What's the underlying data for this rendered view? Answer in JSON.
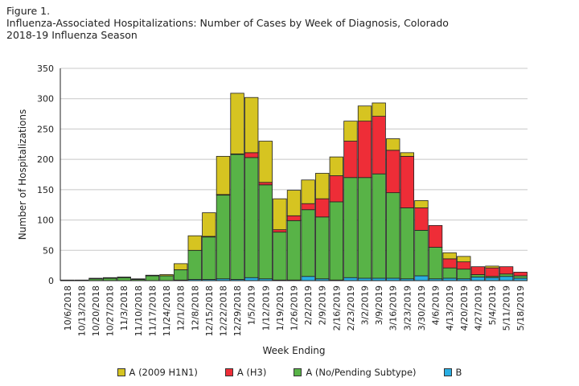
{
  "header": {
    "figure_label": "Figure 1.",
    "title": "Influenza-Associated Hospitalizations: Number of  Cases by Week of Diagnosis, Colorado",
    "subtitle": "2018-19  Influenza Season"
  },
  "colors": {
    "h1n1": "#d6c421",
    "h3": "#ee2d37",
    "no_subtype": "#58b347",
    "b": "#29aee3",
    "grid": "#c8c8c8",
    "bar_stroke": "#222222"
  },
  "chart_data": {
    "type": "bar",
    "stacked": true,
    "title": "Influenza-Associated Hospitalizations: Number of  Cases by Week of Diagnosis, Colorado",
    "xlabel": "Week Ending",
    "ylabel": "Number of Hospitalizations",
    "ylim": [
      0,
      350
    ],
    "yticks": [
      0,
      50,
      100,
      150,
      200,
      250,
      300,
      350
    ],
    "grid": true,
    "legend_position": "bottom",
    "categories": [
      "10/6/2018",
      "10/13/2018",
      "10/20/2018",
      "10/27/2018",
      "11/3/2018",
      "11/10/2018",
      "11/17/2018",
      "11/24/2018",
      "12/1/2018",
      "12/8/2018",
      "12/15/2018",
      "12/22/2018",
      "12/29/2018",
      "1/5/2019",
      "1/12/2019",
      "1/19/2019",
      "1/26/2019",
      "2/2/2019",
      "2/9/2019",
      "2/16/2019",
      "2/23/2019",
      "3/2/2019",
      "3/9/2019",
      "3/16/2019",
      "3/23/2019",
      "3/30/2019",
      "4/6/2019",
      "4/13/2019",
      "4/20/2019",
      "4/27/2019",
      "5/4/2019",
      "5/11/2019",
      "5/18/2019"
    ],
    "series": [
      {
        "name": "B",
        "color_key": "b",
        "values": [
          0,
          0,
          0,
          0,
          0,
          0,
          0,
          0,
          1,
          2,
          2,
          3,
          2,
          5,
          3,
          1,
          1,
          7,
          3,
          1,
          5,
          4,
          4,
          4,
          3,
          8,
          3,
          4,
          3,
          6,
          5,
          7,
          4
        ]
      },
      {
        "name": "A (No/Pending Subtype)",
        "color_key": "no_subtype",
        "values": [
          1,
          1,
          3,
          4,
          5,
          2,
          8,
          8,
          17,
          48,
          70,
          138,
          206,
          198,
          155,
          79,
          98,
          110,
          102,
          129,
          165,
          166,
          172,
          141,
          117,
          75,
          52,
          17,
          16,
          4,
          2,
          4,
          4
        ]
      },
      {
        "name": "A (H3)",
        "color_key": "h3",
        "values": [
          0,
          0,
          0,
          0,
          0,
          0,
          0,
          0,
          0,
          0,
          1,
          1,
          1,
          8,
          4,
          4,
          8,
          10,
          30,
          43,
          60,
          93,
          95,
          70,
          85,
          37,
          36,
          15,
          12,
          13,
          14,
          12,
          6
        ]
      },
      {
        "name": "A (2009 H1N1)",
        "color_key": "h1n1",
        "values": [
          0,
          0,
          1,
          1,
          1,
          1,
          1,
          2,
          10,
          24,
          39,
          63,
          100,
          91,
          68,
          51,
          42,
          39,
          42,
          31,
          33,
          25,
          22,
          19,
          6,
          12,
          0,
          10,
          9,
          0,
          3,
          0,
          0
        ]
      }
    ]
  },
  "legend_items": [
    {
      "label": "A (2009 H1N1)",
      "color_key": "h1n1"
    },
    {
      "label": "A (H3)",
      "color_key": "h3"
    },
    {
      "label": "A (No/Pending Subtype)",
      "color_key": "no_subtype"
    },
    {
      "label": "B",
      "color_key": "b"
    }
  ]
}
